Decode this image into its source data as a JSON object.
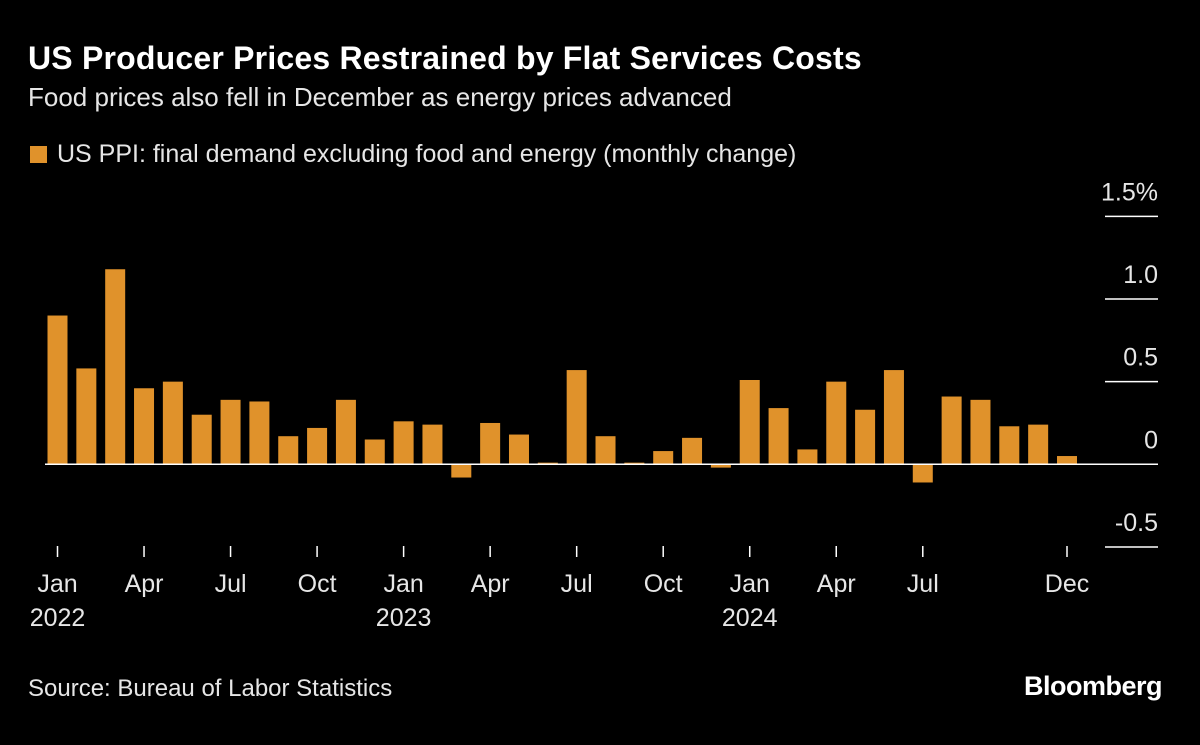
{
  "title": "US Producer Prices Restrained by Flat Services Costs",
  "subtitle": "Food prices also fell in December as energy prices advanced",
  "source": "Source: Bureau of Labor Statistics",
  "logo": "Bloomberg",
  "colors": {
    "bar": "#E0922B",
    "background": "#000000",
    "axis": "#ffffff"
  },
  "chart_data": {
    "type": "bar",
    "title": "US Producer Prices Restrained by Flat Services Costs",
    "legend": [
      {
        "name": "US PPI: final demand excluding food and energy (monthly change)",
        "color": "#E0922B"
      }
    ],
    "legend_placement": "top-left",
    "x_start": "Jan 2022",
    "x_end": "Dec 2024",
    "series": [
      {
        "name": "US PPI: final demand excluding food and energy (monthly change)",
        "values": [
          0.9,
          0.58,
          1.18,
          0.46,
          0.5,
          0.3,
          0.39,
          0.38,
          0.17,
          0.22,
          0.39,
          0.15,
          0.26,
          0.24,
          -0.08,
          0.25,
          0.18,
          0.01,
          0.57,
          0.17,
          0.01,
          0.08,
          0.16,
          -0.02,
          0.51,
          0.34,
          0.09,
          0.5,
          0.33,
          0.57,
          -0.11,
          0.41,
          0.39,
          0.23,
          0.24,
          0.05
        ]
      }
    ],
    "ylim": [
      -0.5,
      1.5
    ],
    "y_ticks": [
      {
        "value": 1.5,
        "label": "1.5%"
      },
      {
        "value": 1.0,
        "label": "1.0"
      },
      {
        "value": 0.5,
        "label": "0.5"
      },
      {
        "value": 0,
        "label": "0"
      },
      {
        "value": -0.5,
        "label": "-0.5"
      }
    ],
    "y_axis_side": "right",
    "x_ticks": [
      {
        "index": 0,
        "label": "Jan",
        "year": "2022"
      },
      {
        "index": 3,
        "label": "Apr",
        "year": ""
      },
      {
        "index": 6,
        "label": "Jul",
        "year": ""
      },
      {
        "index": 9,
        "label": "Oct",
        "year": ""
      },
      {
        "index": 12,
        "label": "Jan",
        "year": "2023"
      },
      {
        "index": 15,
        "label": "Apr",
        "year": ""
      },
      {
        "index": 18,
        "label": "Jul",
        "year": ""
      },
      {
        "index": 21,
        "label": "Oct",
        "year": ""
      },
      {
        "index": 24,
        "label": "Jan",
        "year": "2024"
      },
      {
        "index": 27,
        "label": "Apr",
        "year": ""
      },
      {
        "index": 30,
        "label": "Jul",
        "year": ""
      },
      {
        "index": 35,
        "label": "Dec",
        "year": ""
      }
    ],
    "grid": true
  }
}
